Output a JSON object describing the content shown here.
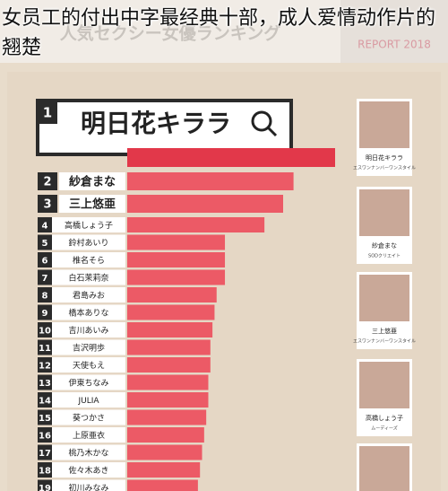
{
  "header": {
    "caption": "女员工的付出中字最经典十部，成人爱情动作片的翘楚",
    "title": "人気セクシー女優ランキング",
    "report": "REPORT 2018"
  },
  "chart_data": {
    "type": "bar",
    "orientation": "horizontal",
    "ranks": [
      1,
      2,
      3,
      4,
      5,
      6,
      7,
      8,
      9,
      10,
      11,
      12,
      13,
      14,
      15,
      16,
      17,
      18,
      19
    ],
    "categories": [
      "明日花キララ",
      "紗倉まな",
      "三上悠亜",
      "高橋しょう子",
      "鈴村あいり",
      "椎名そら",
      "白石茉莉奈",
      "君島みお",
      "橋本ありな",
      "吉川あいみ",
      "吉沢明歩",
      "天使もえ",
      "伊東ちなみ",
      "JULIA",
      "葵つかさ",
      "上原亜衣",
      "桃乃木かな",
      "佐々木あき",
      "初川みなみ"
    ],
    "values": [
      100,
      80,
      75,
      66,
      47,
      47,
      47,
      43,
      42,
      41,
      40,
      40,
      39,
      39,
      38,
      37,
      36,
      35,
      34
    ],
    "color": "#ec5a66",
    "highlight_color": "#e2384a"
  },
  "profiles": [
    {
      "name": "明日花キララ",
      "agency": "エスワンナンバーワンスタイル"
    },
    {
      "name": "紗倉まな",
      "agency": "SODクリエイト"
    },
    {
      "name": "三上悠亜",
      "agency": "エスワンナンバーワンスタイル"
    },
    {
      "name": "高橋しょう子",
      "agency": "ムーディーズ"
    }
  ]
}
